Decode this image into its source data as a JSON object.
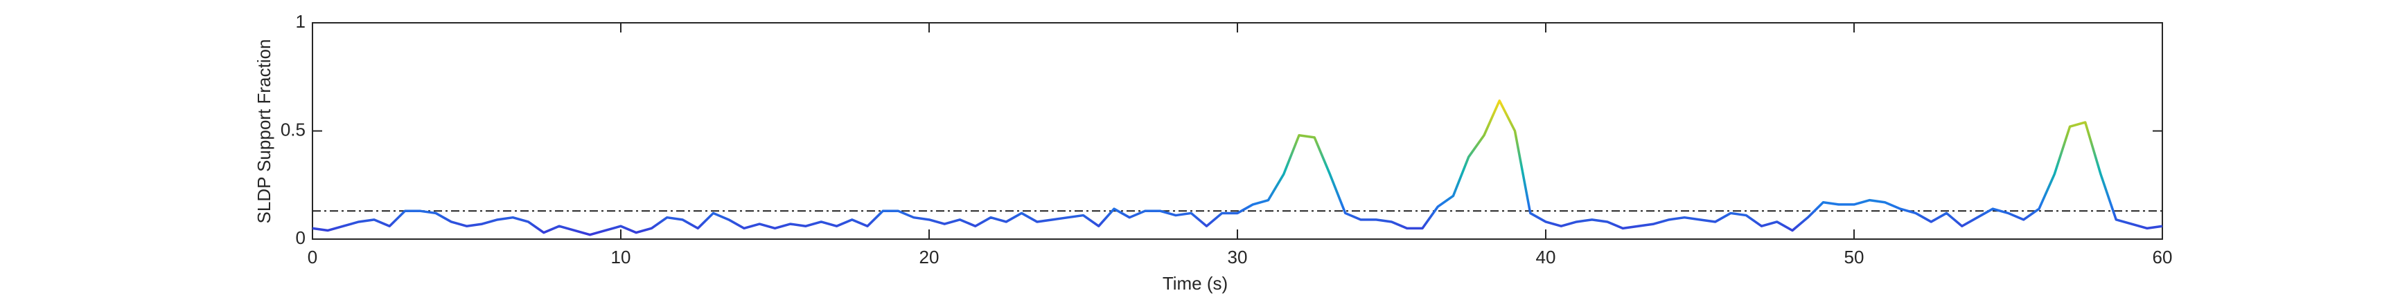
{
  "chart_data": {
    "type": "line",
    "xlabel": "Time (s)",
    "ylabel": "SLDP Support Fraction",
    "x": [
      0,
      0.5,
      1,
      1.5,
      2,
      2.5,
      3,
      3.5,
      4,
      4.5,
      5,
      5.5,
      6,
      6.5,
      7,
      7.5,
      8,
      8.5,
      9,
      9.5,
      10,
      10.5,
      11,
      11.5,
      12,
      12.5,
      13,
      13.5,
      14,
      14.5,
      15,
      15.5,
      16,
      16.5,
      17,
      17.5,
      18,
      18.5,
      19,
      19.5,
      20,
      20.5,
      21,
      21.5,
      22,
      22.5,
      23,
      23.5,
      24,
      24.5,
      25,
      25.5,
      26,
      26.5,
      27,
      27.5,
      28,
      28.5,
      29,
      29.5,
      30,
      30.5,
      31,
      31.5,
      32,
      32.5,
      33,
      33.5,
      34,
      34.5,
      35,
      35.5,
      36,
      36.5,
      37,
      37.5,
      38,
      38.5,
      39,
      39.5,
      40,
      40.5,
      41,
      41.5,
      42,
      42.5,
      43,
      43.5,
      44,
      44.5,
      45,
      45.5,
      46,
      46.5,
      47,
      47.5,
      48,
      48.5,
      49,
      49.5,
      50,
      50.5,
      51,
      51.5,
      52,
      52.5,
      53,
      53.5,
      54,
      54.5,
      55,
      55.5,
      56,
      56.5,
      57,
      57.5,
      58,
      58.5,
      59,
      59.5,
      60
    ],
    "values": [
      0.05,
      0.04,
      0.06,
      0.08,
      0.09,
      0.06,
      0.13,
      0.13,
      0.12,
      0.08,
      0.06,
      0.07,
      0.09,
      0.1,
      0.08,
      0.03,
      0.06,
      0.04,
      0.02,
      0.04,
      0.06,
      0.03,
      0.05,
      0.1,
      0.09,
      0.05,
      0.12,
      0.09,
      0.05,
      0.07,
      0.05,
      0.07,
      0.06,
      0.08,
      0.06,
      0.09,
      0.06,
      0.13,
      0.13,
      0.1,
      0.09,
      0.07,
      0.09,
      0.06,
      0.1,
      0.08,
      0.12,
      0.08,
      0.09,
      0.1,
      0.11,
      0.06,
      0.14,
      0.1,
      0.13,
      0.13,
      0.11,
      0.12,
      0.06,
      0.12,
      0.12,
      0.16,
      0.18,
      0.3,
      0.48,
      0.47,
      0.3,
      0.12,
      0.09,
      0.09,
      0.08,
      0.05,
      0.05,
      0.15,
      0.2,
      0.38,
      0.48,
      0.64,
      0.5,
      0.12,
      0.08,
      0.06,
      0.08,
      0.09,
      0.08,
      0.05,
      0.06,
      0.07,
      0.09,
      0.1,
      0.09,
      0.08,
      0.12,
      0.11,
      0.06,
      0.08,
      0.04,
      0.1,
      0.17,
      0.16,
      0.16,
      0.18,
      0.17,
      0.14,
      0.12,
      0.08,
      0.12,
      0.06,
      0.1,
      0.14,
      0.12,
      0.09,
      0.14,
      0.3,
      0.52,
      0.54,
      0.3,
      0.09,
      0.07,
      0.05,
      0.06
    ],
    "colormap": [
      "#3b30d6",
      "#1e78e6",
      "#13b3b0",
      "#8cc63c",
      "#f2d81c"
    ],
    "reference_line": 0.13,
    "xlim": [
      0,
      60
    ],
    "xticks": [
      0,
      10,
      20,
      30,
      40,
      50,
      60
    ],
    "ylim": [
      0,
      1
    ],
    "yticks": [
      0,
      0.5,
      1
    ]
  }
}
